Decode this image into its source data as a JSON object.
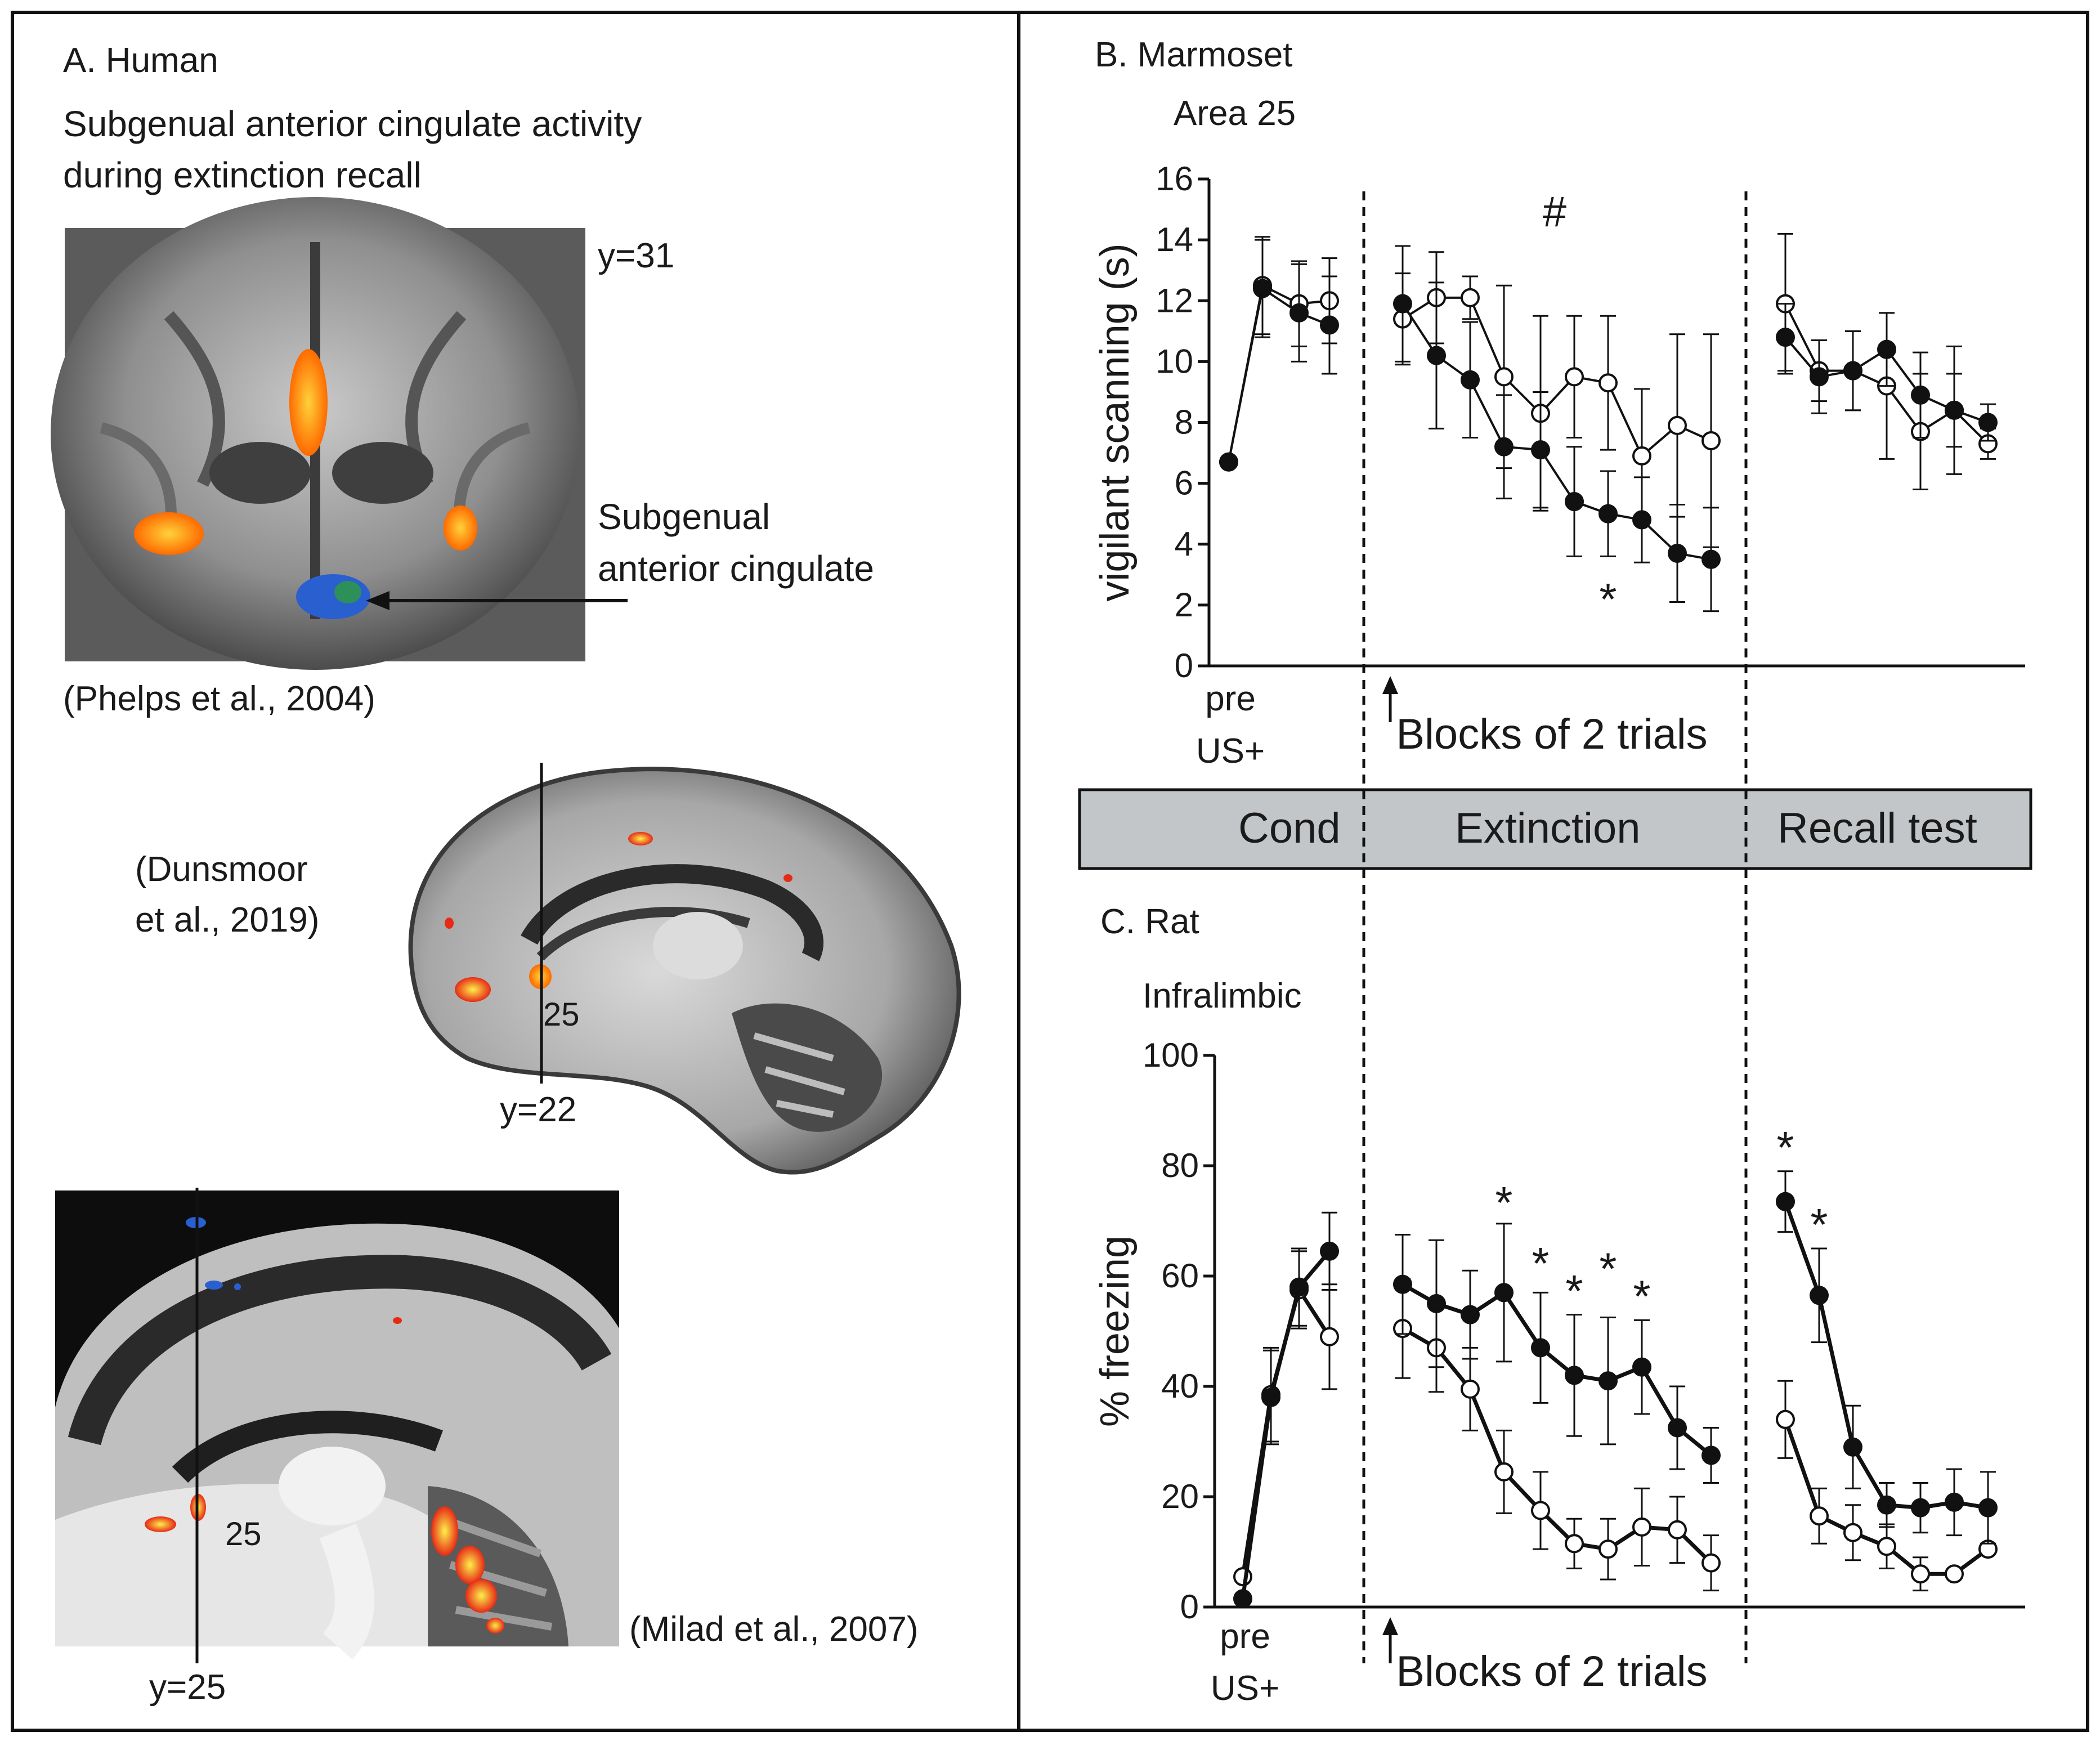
{
  "panel_a": {
    "title": "A. Human",
    "subtitle_line1": "Subgenual anterior cingulate activity",
    "subtitle_line2": "during extinction recall",
    "img1": {
      "coord": "y=31",
      "arrow_label_line1": "Subgenual",
      "arrow_label_line2": "anterior cingulate",
      "citation": "(Phelps et al., 2004)"
    },
    "img2": {
      "citation_line1": "(Dunsmoor",
      "citation_line2": "et al., 2019)",
      "area": "25",
      "coord": "y=22"
    },
    "img3": {
      "area": "25",
      "coord": "y=25",
      "citation": "(Milad et al., 2007)"
    }
  },
  "panel_b": {
    "title": "B. Marmoset",
    "area": "Area 25"
  },
  "panel_c": {
    "title": "C. Rat",
    "area": "Infralimbic"
  },
  "phase_bar": {
    "cond": "Cond",
    "extinction": "Extinction",
    "recall": "Recall test"
  },
  "colors": {
    "filled": "#111111",
    "open": "#ffffff",
    "phase_bar": "#c3c6c9",
    "activation": "#ff7a10",
    "deactivation": "#2a5fd0"
  },
  "chart_data": [
    {
      "type": "line",
      "title": "Area 25",
      "ylabel": "vigilant scanning (s)",
      "ylim": [
        0,
        16
      ],
      "yticks": [
        "0",
        "2",
        "4",
        "6",
        "8",
        "10",
        "12",
        "14",
        "16"
      ],
      "xlabel": "Blocks of 2 trials",
      "pre_label_line1": "pre",
      "pre_label_line2": "US+",
      "phase_labels": [
        "Cond",
        "Extinction",
        "Recall test"
      ],
      "annotations": {
        "hash": "#",
        "star": "*"
      },
      "series": [
        {
          "name": "filled",
          "cond": [
            6.7,
            12.4,
            11.6,
            11.2
          ],
          "cond_err": [
            0,
            1.6,
            1.6,
            1.6
          ],
          "ext": [
            11.9,
            10.2,
            9.4,
            7.2,
            7.1,
            5.4,
            5.0,
            4.8,
            3.7,
            3.5
          ],
          "ext_err": [
            1.9,
            2.4,
            1.9,
            1.7,
            1.9,
            1.8,
            1.4,
            1.4,
            1.6,
            1.7
          ],
          "recall": [
            10.8,
            9.5,
            9.7,
            10.4,
            8.9,
            8.4,
            8.0
          ],
          "recall_err": [
            1.1,
            1.2,
            1.3,
            1.2,
            1.4,
            1.2,
            0.6
          ]
        },
        {
          "name": "open",
          "cond": [
            6.7,
            12.5,
            11.9,
            12.0
          ],
          "cond_err": [
            0,
            1.6,
            1.4,
            1.4
          ],
          "ext": [
            11.4,
            12.1,
            12.1,
            9.5,
            8.3,
            9.5,
            9.3,
            6.9,
            7.9,
            7.4
          ],
          "ext_err": [
            1.5,
            1.5,
            0.7,
            3.0,
            3.2,
            2.0,
            2.2,
            2.2,
            3.0,
            3.5
          ],
          "recall": [
            11.9,
            9.7,
            9.7,
            9.2,
            7.7,
            8.4,
            7.3
          ],
          "recall_err": [
            2.3,
            1.0,
            1.3,
            2.4,
            1.9,
            2.1,
            0.5
          ]
        }
      ],
      "star_positions": [
        {
          "block": 7,
          "value": 2.5
        }
      ]
    },
    {
      "type": "line",
      "title": "Infralimbic",
      "ylabel": "% freezing",
      "ylim": [
        0,
        100
      ],
      "yticks": [
        "0",
        "20",
        "40",
        "60",
        "80",
        "100"
      ],
      "xlabel": "Blocks of 2 trials",
      "pre_label_line1": "pre",
      "pre_label_line2": "US+",
      "annotations": {
        "star": "*"
      },
      "series": [
        {
          "name": "filled",
          "cond": [
            1.5,
            38,
            58,
            64.5
          ],
          "cond_err": [
            0,
            8.5,
            7,
            7
          ],
          "ext": [
            58.5,
            55,
            53,
            57,
            47,
            42,
            41,
            43.5,
            32.5,
            27.5
          ],
          "ext_err": [
            9,
            11.5,
            8,
            12.5,
            10,
            11,
            11.5,
            8.5,
            7.5,
            5
          ],
          "recall": [
            73.5,
            56.5,
            29,
            18.5,
            18,
            19,
            18
          ],
          "recall_err": [
            5.5,
            8.5,
            7.5,
            4,
            4.5,
            6,
            6.5
          ]
        },
        {
          "name": "open",
          "cond": [
            5.5,
            38.5,
            57.5,
            49
          ],
          "cond_err": [
            0,
            8.5,
            7,
            9.5
          ],
          "ext": [
            50.5,
            47,
            39.5,
            24.5,
            17.5,
            11.5,
            10.5,
            14.5,
            14,
            8
          ],
          "ext_err": [
            9,
            8,
            7.5,
            7.5,
            7,
            4.5,
            5.5,
            7,
            6,
            5
          ],
          "recall": [
            34,
            16.5,
            13.5,
            11,
            6,
            6,
            10.5
          ],
          "recall_err": [
            7,
            5,
            5,
            4,
            3,
            0,
            0
          ]
        }
      ],
      "star_positions": [
        {
          "phase": "ext",
          "block": 4,
          "value": 75
        },
        {
          "phase": "ext",
          "block": 5,
          "value": 64
        },
        {
          "phase": "ext",
          "block": 6,
          "value": 59
        },
        {
          "phase": "ext",
          "block": 7,
          "value": 63
        },
        {
          "phase": "ext",
          "block": 8,
          "value": 58
        },
        {
          "phase": "recall",
          "block": 1,
          "value": 85
        },
        {
          "phase": "recall",
          "block": 2,
          "value": 71
        }
      ]
    }
  ]
}
